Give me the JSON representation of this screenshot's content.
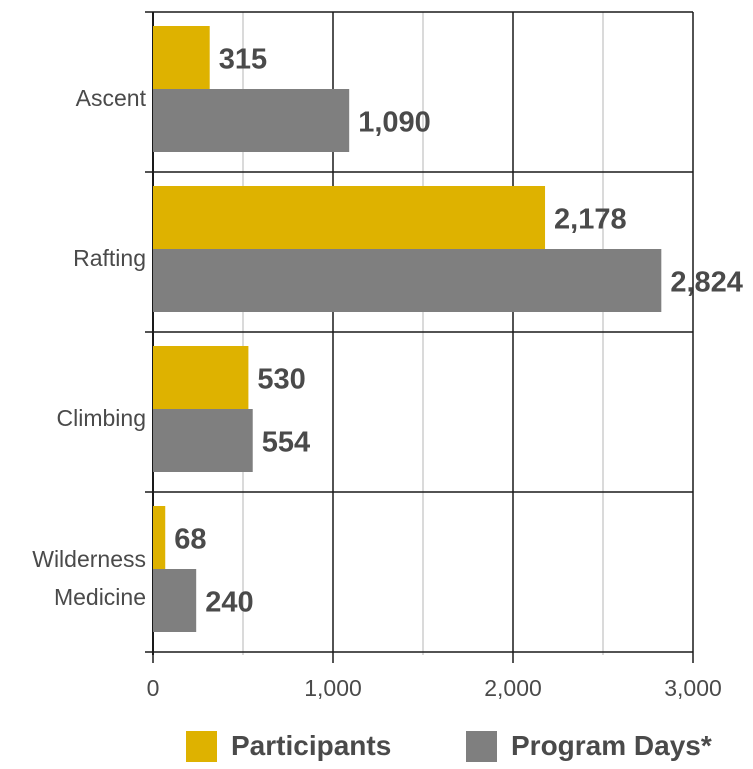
{
  "chart_data": {
    "type": "bar",
    "orientation": "horizontal",
    "categories": [
      [
        "Ascent"
      ],
      [
        "Rafting"
      ],
      [
        "Climbing"
      ],
      [
        "Wilderness",
        "Medicine"
      ]
    ],
    "series": [
      {
        "name": "Participants",
        "color": "#deb200",
        "values": [
          315,
          2178,
          530,
          68
        ],
        "labels": [
          "315",
          "2,178",
          "530",
          "68"
        ]
      },
      {
        "name": "Program Days*",
        "color": "#7f7f7f",
        "values": [
          1090,
          2824,
          554,
          240
        ],
        "labels": [
          "1,090",
          "2,824",
          "554",
          "240"
        ]
      }
    ],
    "xlim": [
      0,
      3000
    ],
    "xticks": [
      0,
      1000,
      2000,
      3000
    ],
    "xtick_labels": [
      "0",
      "1,000",
      "2,000",
      "3,000"
    ],
    "grid": true,
    "legend_position": "bottom"
  }
}
